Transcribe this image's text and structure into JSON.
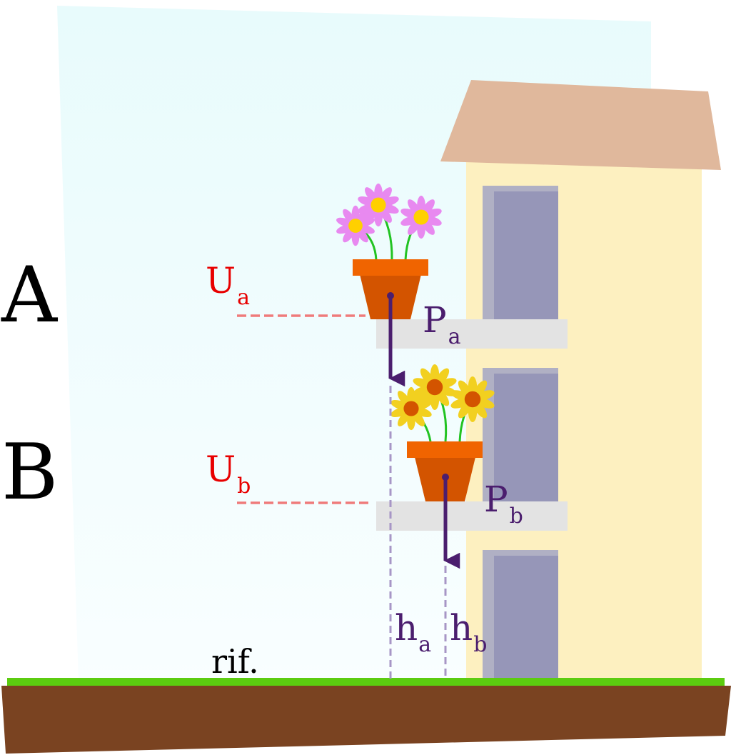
{
  "labels": {
    "level_a": "A",
    "level_b": "B",
    "energy_a": {
      "symbol": "U",
      "subscript": "a"
    },
    "energy_b": {
      "symbol": "U",
      "subscript": "b"
    },
    "weight_a": {
      "symbol": "P",
      "subscript": "a"
    },
    "weight_b": {
      "symbol": "P",
      "subscript": "b"
    },
    "height_a": {
      "symbol": "h",
      "subscript": "a"
    },
    "height_b": {
      "symbol": "h",
      "subscript": "b"
    },
    "reference": "rif."
  },
  "colors": {
    "sky_top": "#e8fbfc",
    "sky_bottom": "#f9feff",
    "roof": "#e0b89c",
    "wall": "#fdf0c0",
    "window_frame": "#b0b0c4",
    "window": "#9696b8",
    "balcony": "#e3e3e3",
    "pot": "#d35400",
    "pot_rim": "#f06400",
    "flower_pink": "#e889f0",
    "flower_pink_center": "#ffd000",
    "flower_yellow": "#f2d020",
    "flower_yellow_center": "#d35400",
    "stem": "#22c322",
    "energy_red": "#e80000",
    "energy_line": "#ef7b7b",
    "force_purple": "#4b1e6e",
    "height_line": "#a796c6",
    "grass": "#5ccc10",
    "soil": "#7a4321"
  },
  "icons": {
    "pot_a": "flower-pot-pink-daisies",
    "pot_b": "flower-pot-yellow-daisies",
    "arrow": "downward-arrow"
  }
}
